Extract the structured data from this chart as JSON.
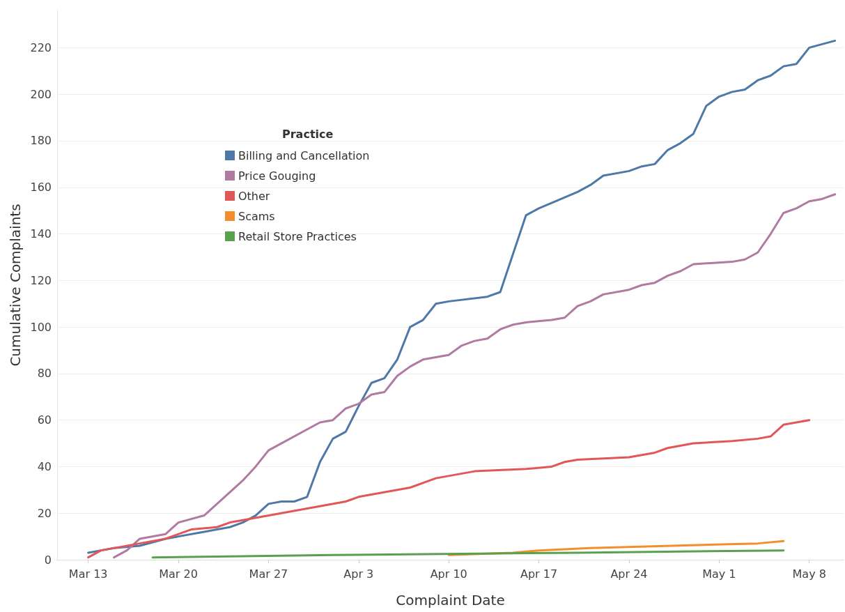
{
  "chart_data": {
    "type": "line",
    "xlabel": "Complaint Date",
    "ylabel": "Cumulative Complaints",
    "legend_title": "Practice",
    "legend": "top left",
    "grid": "y",
    "marker": "none",
    "line_style": "solid",
    "xlim": [
      "--03-10T14:00",
      "--05-10T16:00"
    ],
    "xticks": [
      {
        "value": "--03-13",
        "label": "Mar 13"
      },
      {
        "value": "--03-20",
        "label": "Mar 20"
      },
      {
        "value": "--03-27",
        "label": "Mar 27"
      },
      {
        "value": "--04-03",
        "label": "Apr 3"
      },
      {
        "value": "--04-10",
        "label": "Apr 10"
      },
      {
        "value": "--04-17",
        "label": "Apr 17"
      },
      {
        "value": "--04-24",
        "label": "Apr 24"
      },
      {
        "value": "--05-01",
        "label": "May 1"
      },
      {
        "value": "--05-08",
        "label": "May 8"
      }
    ],
    "ylim": [
      0,
      236
    ],
    "yticks": [
      0,
      20,
      40,
      60,
      80,
      100,
      120,
      140,
      160,
      180,
      200,
      220
    ],
    "series": [
      {
        "name": "Billing and Cancellation",
        "color": "#4e79a7",
        "x": [
          "--03-13",
          "--03-14",
          "--03-15",
          "--03-17",
          "--03-19",
          "--03-20",
          "--03-22",
          "--03-24",
          "--03-25",
          "--03-26",
          "--03-27",
          "--03-28",
          "--03-29",
          "--03-30",
          "--03-31",
          "--04-01",
          "--04-02",
          "--04-03",
          "--04-04",
          "--04-05",
          "--04-06",
          "--04-07",
          "--04-08",
          "--04-09",
          "--04-10",
          "--04-13",
          "--04-14",
          "--04-16",
          "--04-17",
          "--04-20",
          "--04-21",
          "--04-22",
          "--04-24",
          "--04-25",
          "--04-26",
          "--04-27",
          "--04-28",
          "--04-29",
          "--04-30",
          "--05-01",
          "--05-02",
          "--05-03",
          "--05-04",
          "--05-05",
          "--05-06",
          "--05-07",
          "--05-08",
          "--05-10"
        ],
        "values": [
          3,
          4,
          5,
          6,
          9,
          10,
          12,
          14,
          16,
          19,
          24,
          25,
          25,
          27,
          42,
          52,
          55,
          66,
          76,
          78,
          86,
          100,
          103,
          110,
          111,
          113,
          115,
          148,
          151,
          158,
          161,
          165,
          167,
          169,
          170,
          176,
          179,
          183,
          195,
          199,
          201,
          202,
          206,
          208,
          212,
          213,
          220,
          223
        ]
      },
      {
        "name": "Price Gouging",
        "color": "#b07aa1",
        "x": [
          "--03-15",
          "--03-16",
          "--03-17",
          "--03-19",
          "--03-20",
          "--03-22",
          "--03-24",
          "--03-25",
          "--03-26",
          "--03-27",
          "--03-31",
          "--04-01",
          "--04-02",
          "--04-03",
          "--04-04",
          "--04-05",
          "--04-06",
          "--04-07",
          "--04-08",
          "--04-10",
          "--04-11",
          "--04-12",
          "--04-13",
          "--04-14",
          "--04-15",
          "--04-16",
          "--04-18",
          "--04-19",
          "--04-20",
          "--04-21",
          "--04-22",
          "--04-24",
          "--04-25",
          "--04-26",
          "--04-27",
          "--04-28",
          "--04-29",
          "--05-02",
          "--05-03",
          "--05-04",
          "--05-05",
          "--05-06",
          "--05-07",
          "--05-08",
          "--05-09",
          "--05-10"
        ],
        "values": [
          1,
          4,
          9,
          11,
          16,
          19,
          29,
          34,
          40,
          47,
          59,
          60,
          65,
          67,
          71,
          72,
          79,
          83,
          86,
          88,
          92,
          94,
          95,
          99,
          101,
          102,
          103,
          104,
          109,
          111,
          114,
          116,
          118,
          119,
          122,
          124,
          127,
          128,
          129,
          132,
          140,
          149,
          151,
          154,
          155,
          157
        ]
      },
      {
        "name": "Other",
        "color": "#e15759",
        "x": [
          "--03-13",
          "--03-14",
          "--03-17",
          "--03-19",
          "--03-21",
          "--03-23",
          "--03-24",
          "--03-25",
          "--04-02",
          "--04-03",
          "--04-07",
          "--04-09",
          "--04-12",
          "--04-16",
          "--04-18",
          "--04-19",
          "--04-20",
          "--04-24",
          "--04-26",
          "--04-27",
          "--04-29",
          "--05-02",
          "--05-04",
          "--05-05",
          "--05-06",
          "--05-08"
        ],
        "values": [
          1,
          4,
          7,
          9,
          13,
          14,
          16,
          17,
          25,
          27,
          31,
          35,
          38,
          39,
          40,
          42,
          43,
          44,
          46,
          48,
          50,
          51,
          52,
          53,
          58,
          60
        ]
      },
      {
        "name": "Scams",
        "color": "#f28e2b",
        "x": [
          "--04-10",
          "--04-15",
          "--04-17",
          "--04-21",
          "--05-04",
          "--05-06"
        ],
        "values": [
          2,
          3,
          4,
          5,
          7,
          8
        ]
      },
      {
        "name": "Retail Store Practices",
        "color": "#59a14f",
        "x": [
          "--03-18",
          "--04-01",
          "--04-20",
          "--05-06"
        ],
        "values": [
          1,
          2,
          3,
          4
        ]
      }
    ]
  }
}
